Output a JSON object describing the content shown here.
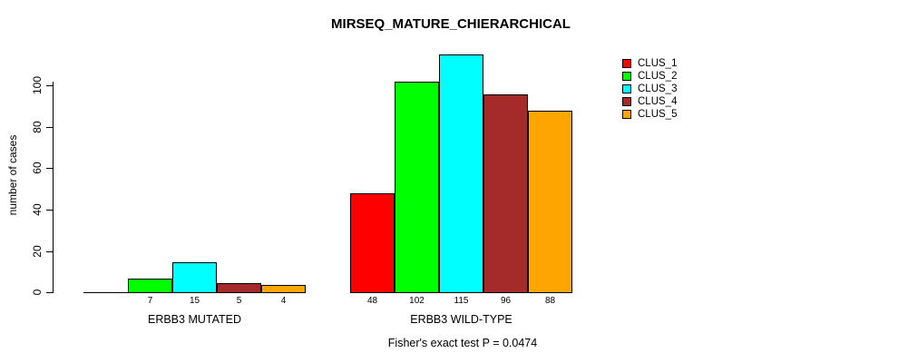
{
  "chart_data": {
    "type": "bar",
    "title": "MIRSEQ_MATURE_CHIERARCHICAL",
    "ylabel": "number of cases",
    "yticks": [
      0,
      20,
      40,
      60,
      80,
      100
    ],
    "ylim": [
      0,
      115
    ],
    "grid": false,
    "legend_position": "right",
    "categories": [
      "ERBB3 MUTATED",
      "ERBB3 WILD-TYPE"
    ],
    "series": [
      {
        "name": "CLUS_1",
        "color": "#ff0000",
        "values": [
          0,
          48
        ]
      },
      {
        "name": "CLUS_2",
        "color": "#00ff00",
        "values": [
          7,
          102
        ]
      },
      {
        "name": "CLUS_3",
        "color": "#00ffff",
        "values": [
          15,
          115
        ]
      },
      {
        "name": "CLUS_4",
        "color": "#a52a2a",
        "values": [
          5,
          96
        ]
      },
      {
        "name": "CLUS_5",
        "color": "#ffa500",
        "values": [
          4,
          88
        ]
      }
    ],
    "bar_value_labels_shown": true,
    "annotation": "Fisher's exact test P = 0.0474"
  }
}
